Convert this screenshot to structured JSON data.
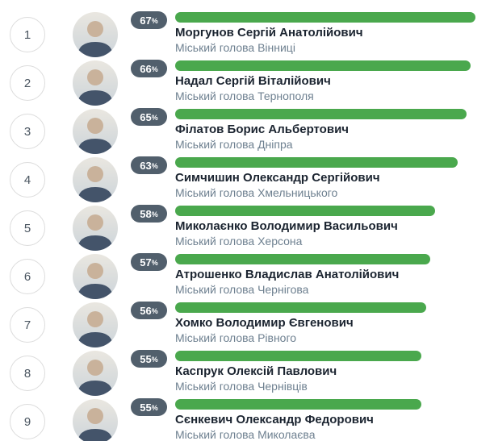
{
  "unit": "%",
  "colors": {
    "bar_fill": "#4aa84d",
    "badge_bg": "#515f6c",
    "badge_text": "#ffffff",
    "name_text": "#1b2430",
    "subtitle_text": "#6e8090",
    "circle_border": "#dcdcdc",
    "circle_text": "#4a5560",
    "page_bg": "#ffffff"
  },
  "chart_data": {
    "type": "bar",
    "orientation": "horizontal",
    "unit": "%",
    "legend": "none",
    "grid": "off",
    "categories": [
      "Моргунов Сергій Анатолійович",
      "Надал Сергій Віталійович",
      "Філатов Борис Альбертович",
      "Симчишин Олександр Сергійович",
      "Миколаєнко Володимир Васильович",
      "Атрошенко Владислав Анатолійович",
      "Хомко Володимир Євгенович",
      "Каспрук Олексій Павлович",
      "Сєнкевич Олександр Федорович"
    ],
    "category_subtitles": [
      "Міський голова Вінниці",
      "Міський голова Тернополя",
      "Міський голова Дніпра",
      "Міський голова Хмельницького",
      "Міський голова Херсона",
      "Міський голова Чернігова",
      "Міський голова Рівного",
      "Міський голова Чернівців",
      "Міський голова Миколаєва"
    ],
    "ranks": [
      1,
      2,
      3,
      4,
      5,
      6,
      7,
      8,
      9
    ],
    "values": [
      67,
      66,
      65,
      63,
      58,
      57,
      56,
      55,
      55
    ]
  },
  "rows": [
    {
      "rank": "1",
      "percent": 67,
      "name": "Моргунов Сергій Анатолійович",
      "title": "Міський голова Вінниці"
    },
    {
      "rank": "2",
      "percent": 66,
      "name": "Надал Сергій Віталійович",
      "title": "Міський голова Тернополя"
    },
    {
      "rank": "3",
      "percent": 65,
      "name": "Філатов Борис Альбертович",
      "title": "Міський голова Дніпра"
    },
    {
      "rank": "4",
      "percent": 63,
      "name": "Симчишин Олександр Сергійович",
      "title": "Міський голова Хмельницького"
    },
    {
      "rank": "5",
      "percent": 58,
      "name": "Миколаєнко Володимир Васильович",
      "title": "Міський голова Херсона"
    },
    {
      "rank": "6",
      "percent": 57,
      "name": "Атрошенко Владислав Анатолійович",
      "title": "Міський голова Чернігова"
    },
    {
      "rank": "7",
      "percent": 56,
      "name": "Хомко Володимир Євгенович",
      "title": "Міський голова Рівного"
    },
    {
      "rank": "8",
      "percent": 55,
      "name": "Каспрук Олексій Павлович",
      "title": "Міський голова Чернівців"
    },
    {
      "rank": "9",
      "percent": 55,
      "name": "Сєнкевич Олександр Федорович",
      "title": "Міський голова Миколаєва"
    }
  ]
}
